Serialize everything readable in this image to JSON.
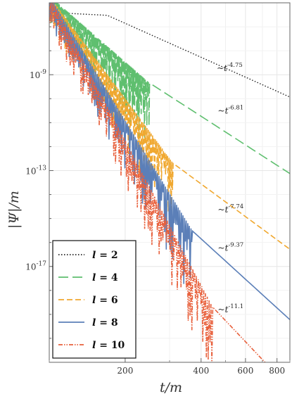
{
  "chart_data": {
    "type": "line",
    "x_scale": "log",
    "y_scale": "log",
    "xlim": [
      100,
      900
    ],
    "ylim": [
      1e-21,
      1e-06
    ],
    "xlabel": "t/m",
    "ylabel": "|Ψ|/m",
    "x_ticks": [
      {
        "value": 200,
        "label": "200"
      },
      {
        "value": 400,
        "label": "400"
      },
      {
        "value": 600,
        "label": "600"
      },
      {
        "value": 800,
        "label": "800"
      }
    ],
    "y_ticks": [
      {
        "value": 1e-09,
        "base": "10",
        "exp": "-9"
      },
      {
        "value": 1e-13,
        "base": "10",
        "exp": "-13"
      },
      {
        "value": 1e-17,
        "base": "10",
        "exp": "-17"
      }
    ],
    "grid": true,
    "legend_position": "bottom-left",
    "series": [
      {
        "name": "l = 2",
        "label_l": "l",
        "label_value": "2",
        "color": "#222222",
        "style": "dotted",
        "tail_start": [
          170,
          3e-07
        ],
        "tail_end": [
          900,
          1.17e-10
        ],
        "power_law_label": {
          "base": "~t",
          "exp": "-4.75",
          "at": [
            560,
            1.4e-09
          ]
        }
      },
      {
        "name": "l = 4",
        "label_l": "l",
        "label_value": "4",
        "color": "#5fbf6f",
        "style": "long-dash",
        "tail_start": [
          250,
          4.5e-10
        ],
        "tail_end": [
          900,
          7.5e-14
        ],
        "power_law_label": {
          "base": "~t",
          "exp": "-6.81",
          "at": [
            565,
            2.4e-11
          ]
        },
        "ringing_end": 250
      },
      {
        "name": "l = 6",
        "label_l": "l",
        "label_value": "6",
        "color": "#f0a830",
        "style": "dashed",
        "tail_start": [
          310,
          2e-13
        ],
        "tail_end": [
          900,
          5.2e-17
        ],
        "power_law_label": {
          "base": "~t",
          "exp": "-7.74",
          "at": [
            565,
            1.8e-15
          ]
        },
        "ringing_end": 310
      },
      {
        "name": "l = 8",
        "label_l": "l",
        "label_value": "8",
        "color": "#5b7fb8",
        "style": "solid",
        "tail_start": [
          370,
          3e-16
        ],
        "tail_end": [
          900,
          6e-20
        ],
        "power_law_label": {
          "base": "~t",
          "exp": "-9.37",
          "at": [
            565,
            4.5e-17
          ]
        },
        "ringing_end": 370
      },
      {
        "name": "l = 10",
        "label_l": "l",
        "label_value": "10",
        "color": "#e8603c",
        "style": "dash-dot-dot",
        "tail_start": [
          445,
          2e-19
        ],
        "tail_end": [
          900,
          8e-23
        ],
        "power_law_label": {
          "base": "~t",
          "exp": "-11.1",
          "at": [
            565,
            1.2e-19
          ]
        },
        "ringing_end": 445
      }
    ]
  }
}
